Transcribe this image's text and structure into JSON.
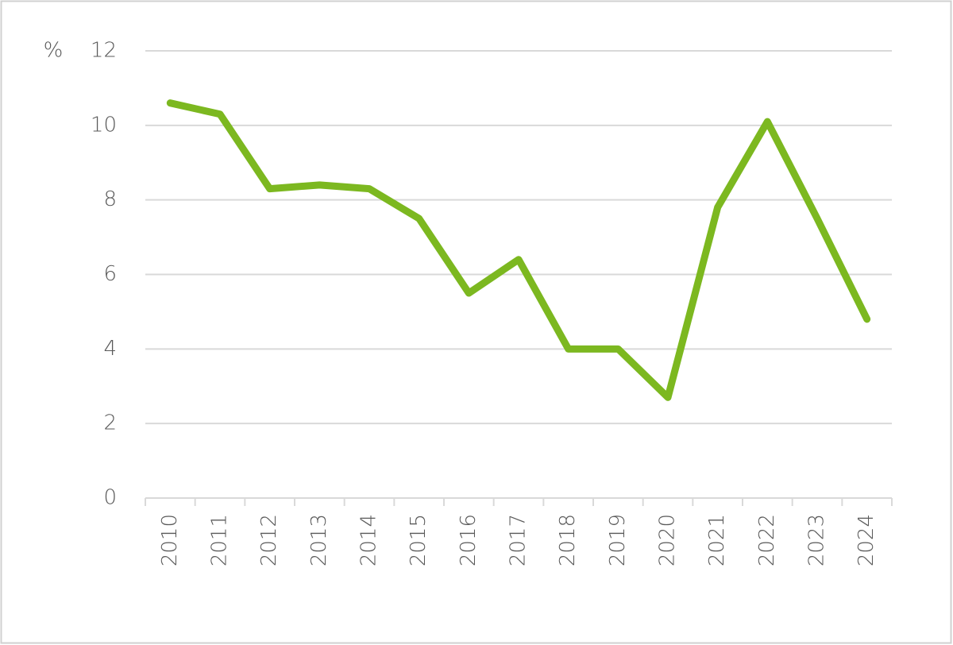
{
  "chart_data": {
    "type": "line",
    "y_label": "%",
    "categories": [
      "2010",
      "2011",
      "2012",
      "2013",
      "2014",
      "2015",
      "2016",
      "2017",
      "2018",
      "2019",
      "2020",
      "2021",
      "2022",
      "2023",
      "2024"
    ],
    "values": [
      10.6,
      10.3,
      8.3,
      8.4,
      8.3,
      7.5,
      5.5,
      6.4,
      4.0,
      4.0,
      2.7,
      7.8,
      10.1,
      7.5,
      4.8
    ],
    "color": "#7cb820",
    "ylim": [
      0,
      12
    ],
    "yticks": [
      0,
      2,
      4,
      6,
      8,
      10,
      12
    ],
    "grid": true
  }
}
